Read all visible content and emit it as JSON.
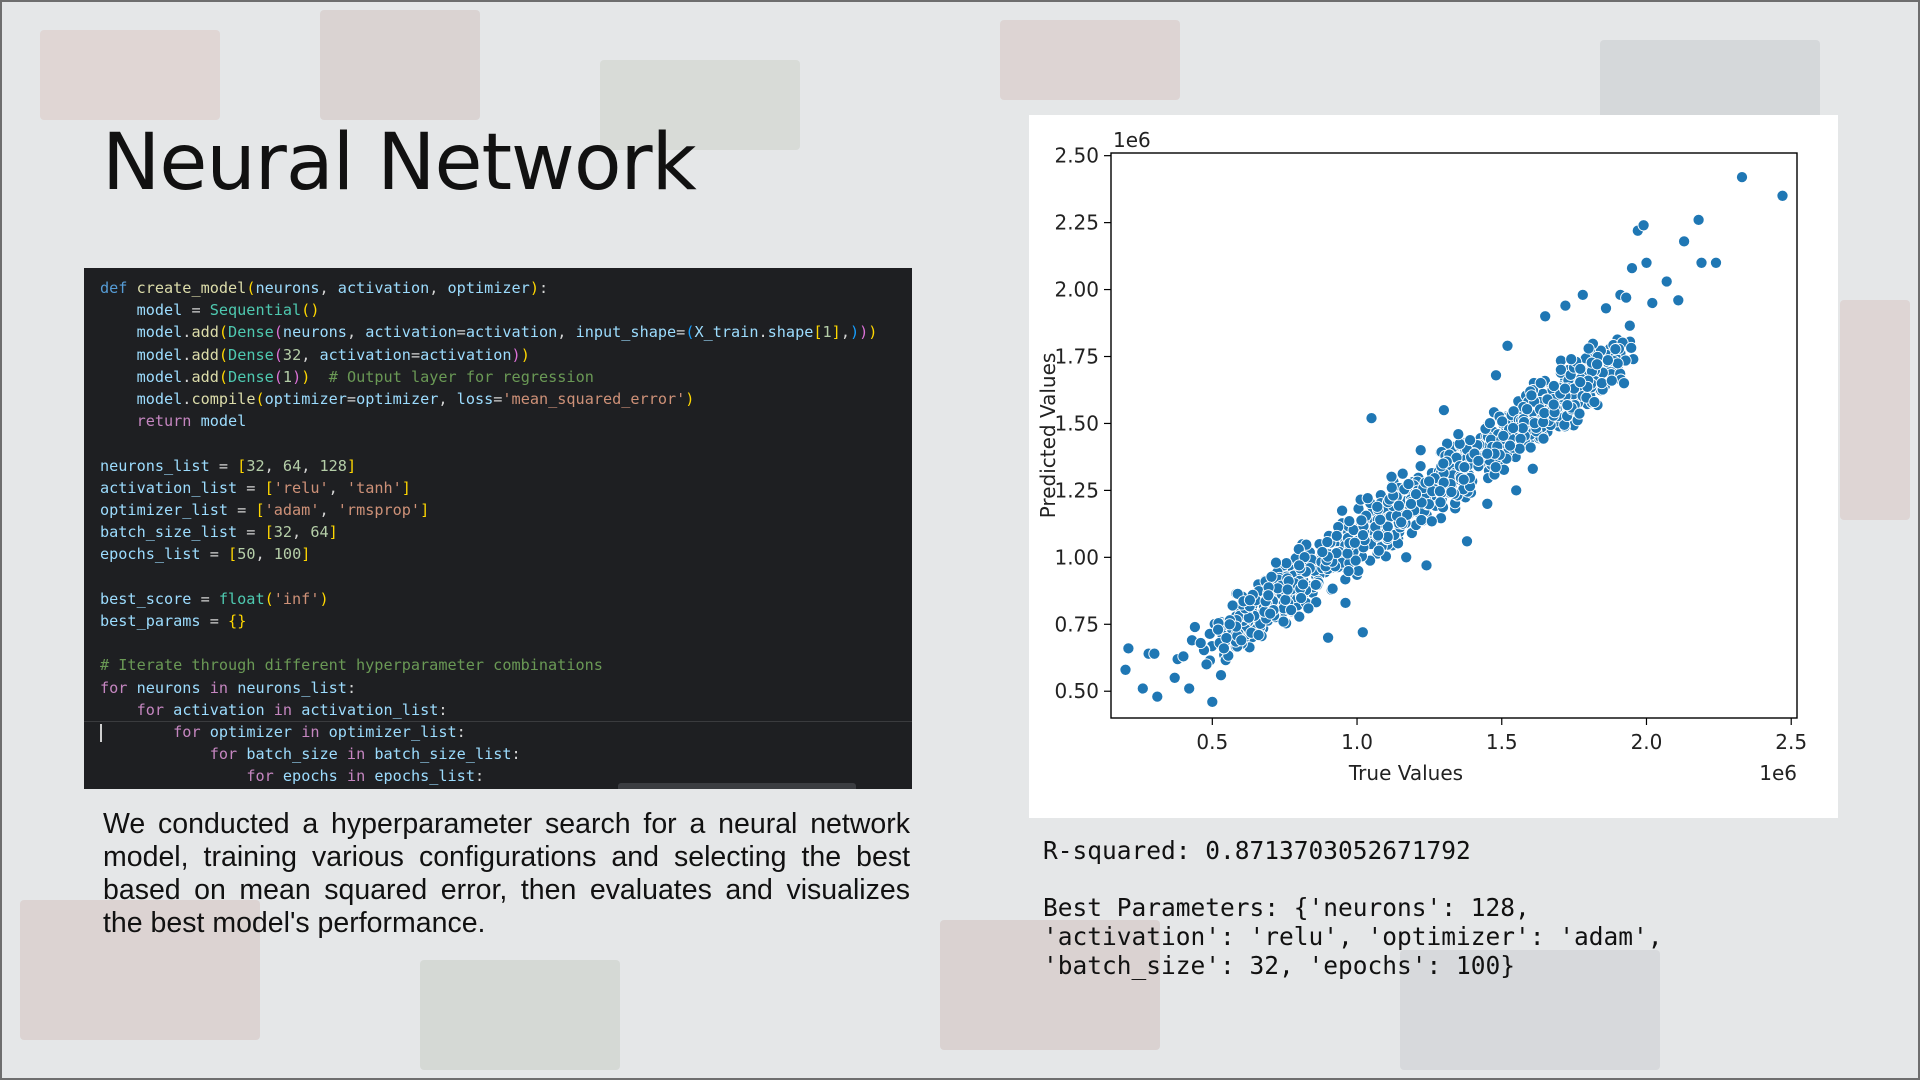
{
  "slide": {
    "title": "Neural Network",
    "description": "We conducted a hyperparameter search for a neural network model, training various configurations and selecting the best based on mean squared error, then evaluates and visualizes the best model's performance."
  },
  "code_lines": [
    "def create_model(neurons, activation, optimizer):",
    "    model = Sequential()",
    "    model.add(Dense(neurons, activation=activation, input_shape=(X_train.shape[1],)))",
    "    model.add(Dense(32, activation=activation))",
    "    model.add(Dense(1))  # Output layer for regression",
    "    model.compile(optimizer=optimizer, loss='mean_squared_error')",
    "    return model",
    "",
    "neurons_list = [32, 64, 128]",
    "activation_list = ['relu', 'tanh']",
    "optimizer_list = ['adam', 'rmsprop']",
    "batch_size_list = [32, 64]",
    "epochs_list = [50, 100]",
    "",
    "best_score = float('inf')",
    "best_params = {}",
    "",
    "# Iterate through different hyperparameter combinations",
    "for neurons in neurons_list:",
    "    for activation in activation_list:",
    "        for optimizer in optimizer_list:",
    "            for batch_size in batch_size_list:",
    "                for epochs in epochs_list:"
  ],
  "output": {
    "r_squared": "R-squared: 0.8713703052671792",
    "best_params_lines": [
      "Best Parameters: {'neurons': 128,",
      "'activation': 'relu', 'optimizer': 'adam',",
      "'batch_size': 32, 'epochs': 100}"
    ]
  },
  "chart_data": {
    "type": "scatter",
    "xlabel": "True Values",
    "ylabel": "Predicted Values",
    "x_offset_label": "1e6",
    "y_offset_label": "1e6",
    "xlim": [
      0.15,
      2.52
    ],
    "ylim": [
      0.4,
      2.51
    ],
    "x_ticks": [
      0.5,
      1.0,
      1.5,
      2.0,
      2.5
    ],
    "x_tick_labels": [
      "0.5",
      "1.0",
      "1.5",
      "2.0",
      "2.5"
    ],
    "y_ticks": [
      0.5,
      0.75,
      1.0,
      1.25,
      1.5,
      1.75,
      2.0,
      2.25,
      2.5
    ],
    "y_tick_labels": [
      "0.50",
      "0.75",
      "1.00",
      "1.25",
      "1.50",
      "1.75",
      "2.00",
      "2.25",
      "2.50"
    ],
    "grid": false,
    "marker_color": "#1f77b4",
    "points": [
      [
        0.2,
        0.58
      ],
      [
        0.21,
        0.66
      ],
      [
        0.26,
        0.51
      ],
      [
        0.28,
        0.64
      ],
      [
        0.3,
        0.64
      ],
      [
        0.31,
        0.48
      ],
      [
        0.37,
        0.55
      ],
      [
        0.38,
        0.62
      ],
      [
        0.4,
        0.63
      ],
      [
        0.42,
        0.51
      ],
      [
        0.43,
        0.69
      ],
      [
        0.44,
        0.74
      ],
      [
        0.46,
        0.68
      ],
      [
        0.48,
        0.6
      ],
      [
        0.5,
        0.46
      ],
      [
        0.52,
        0.73
      ],
      [
        0.53,
        0.56
      ],
      [
        0.54,
        0.66
      ],
      [
        0.56,
        0.75
      ],
      [
        0.57,
        0.82
      ],
      [
        0.6,
        0.69
      ],
      [
        0.63,
        0.84
      ],
      [
        0.66,
        0.71
      ],
      [
        0.7,
        0.79
      ],
      [
        0.72,
        0.98
      ],
      [
        0.76,
        0.88
      ],
      [
        0.8,
        0.97
      ],
      [
        0.88,
        1.02
      ],
      [
        0.9,
        0.7
      ],
      [
        0.93,
        1.08
      ],
      [
        0.96,
        0.83
      ],
      [
        1.02,
        0.72
      ],
      [
        1.05,
        1.52
      ],
      [
        1.08,
        1.14
      ],
      [
        1.12,
        1.26
      ],
      [
        1.17,
        1.0
      ],
      [
        1.22,
        1.4
      ],
      [
        1.24,
        0.97
      ],
      [
        1.3,
        1.55
      ],
      [
        1.35,
        1.46
      ],
      [
        1.38,
        1.06
      ],
      [
        1.45,
        1.2
      ],
      [
        1.48,
        1.68
      ],
      [
        1.52,
        1.79
      ],
      [
        1.55,
        1.25
      ],
      [
        1.6,
        1.41
      ],
      [
        1.65,
        1.9
      ],
      [
        1.68,
        1.64
      ],
      [
        1.72,
        1.94
      ],
      [
        1.74,
        1.74
      ],
      [
        1.78,
        1.98
      ],
      [
        1.8,
        1.78
      ],
      [
        1.82,
        1.58
      ],
      [
        1.86,
        1.93
      ],
      [
        1.88,
        1.66
      ],
      [
        1.91,
        1.98
      ],
      [
        1.93,
        1.97
      ],
      [
        1.95,
        2.08
      ],
      [
        1.97,
        2.22
      ],
      [
        1.99,
        2.24
      ],
      [
        2.0,
        2.1
      ],
      [
        2.02,
        1.95
      ],
      [
        2.07,
        2.03
      ],
      [
        2.11,
        1.96
      ],
      [
        2.13,
        2.18
      ],
      [
        2.18,
        2.26
      ],
      [
        2.19,
        2.1
      ],
      [
        2.24,
        2.1
      ],
      [
        2.33,
        2.42
      ],
      [
        2.47,
        2.35
      ]
    ]
  }
}
